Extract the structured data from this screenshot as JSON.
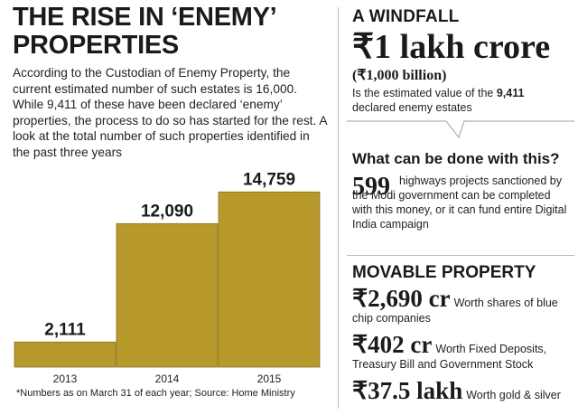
{
  "title": {
    "line1": "THE RISE IN ‘ENEMY’",
    "line2": "PROPERTIES"
  },
  "intro": "According to the Custodian of Enemy Property, the current estimated number of such estates is 16,000. While 9,411 of these have been declared ‘enemy’ properties, the process to do so has started for the rest. A look at the total number of such properties identified in the past three years",
  "footnote": "*Numbers as on March 31 of each year; Source: Home Ministry",
  "colors": {
    "bar": "#b89a2c",
    "bar_edge": "#8a7220",
    "divider": "#bdbdbd"
  },
  "chart_data": {
    "type": "bar",
    "categories": [
      "2013",
      "2014",
      "2015"
    ],
    "values": [
      2111,
      12090,
      14759
    ],
    "data_labels": [
      "2,111",
      "12,090",
      "14,759"
    ],
    "title": "",
    "xlabel": "",
    "ylabel": "",
    "ylim": [
      0,
      16000
    ],
    "grid": false,
    "legend": "none"
  },
  "windfall": {
    "heading": "A WINDFALL",
    "value": "₹1 lakh crore",
    "sub": "(₹1,000 billion)",
    "desc_pre": "Is the estimated value of the ",
    "desc_num": "9,411",
    "desc_post": "declared enemy estates"
  },
  "question": "What can be done with this?",
  "highways": {
    "value": "599",
    "desc": "highways projects sanctioned by the Modi government can be completed with this money, or it can fund entire Digital India campaign"
  },
  "movable": {
    "heading": "MOVABLE PROPERTY",
    "items": [
      {
        "value": "₹2,690 cr",
        "desc": "Worth shares of blue chip companies"
      },
      {
        "value": "₹402 cr",
        "desc": "Worth Fixed Deposits, Treasury Bill and Government Stock"
      },
      {
        "value": "₹37.5 lakh",
        "desc": "Worth gold & silver"
      }
    ]
  }
}
